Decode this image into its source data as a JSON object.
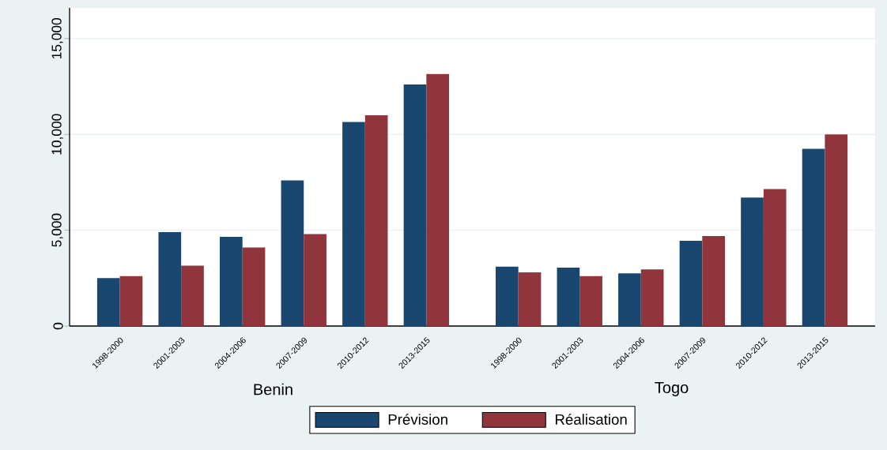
{
  "chart_data": {
    "type": "bar",
    "categories": [
      "1998-2000",
      "2001-2003",
      "2004-2006",
      "2007-2009",
      "2010-2012",
      "2013-2015",
      "1998-2000",
      "2001-2003",
      "2004-2006",
      "2007-2009",
      "2010-2012",
      "2013-2015"
    ],
    "series": [
      {
        "name": "Prévision",
        "color": "#1a476f",
        "values": [
          2500,
          4900,
          4650,
          7600,
          10650,
          12600,
          3100,
          3050,
          2750,
          4450,
          6700,
          9250
        ]
      },
      {
        "name": "Réalisation",
        "color": "#90353b",
        "values": [
          2600,
          3150,
          4100,
          4800,
          11000,
          13150,
          2800,
          2600,
          2950,
          4700,
          7150,
          10000
        ]
      }
    ],
    "ylim": [
      0,
      16600
    ],
    "yticks": [
      0,
      {
        "value": 5000,
        "label": "5,000"
      },
      {
        "value": 10000,
        "label": "10,000"
      },
      {
        "value": 15000,
        "label": "15,000"
      }
    ],
    "grid": "y",
    "legend": "bottom",
    "annotations": [
      "Benin",
      "Togo"
    ]
  }
}
